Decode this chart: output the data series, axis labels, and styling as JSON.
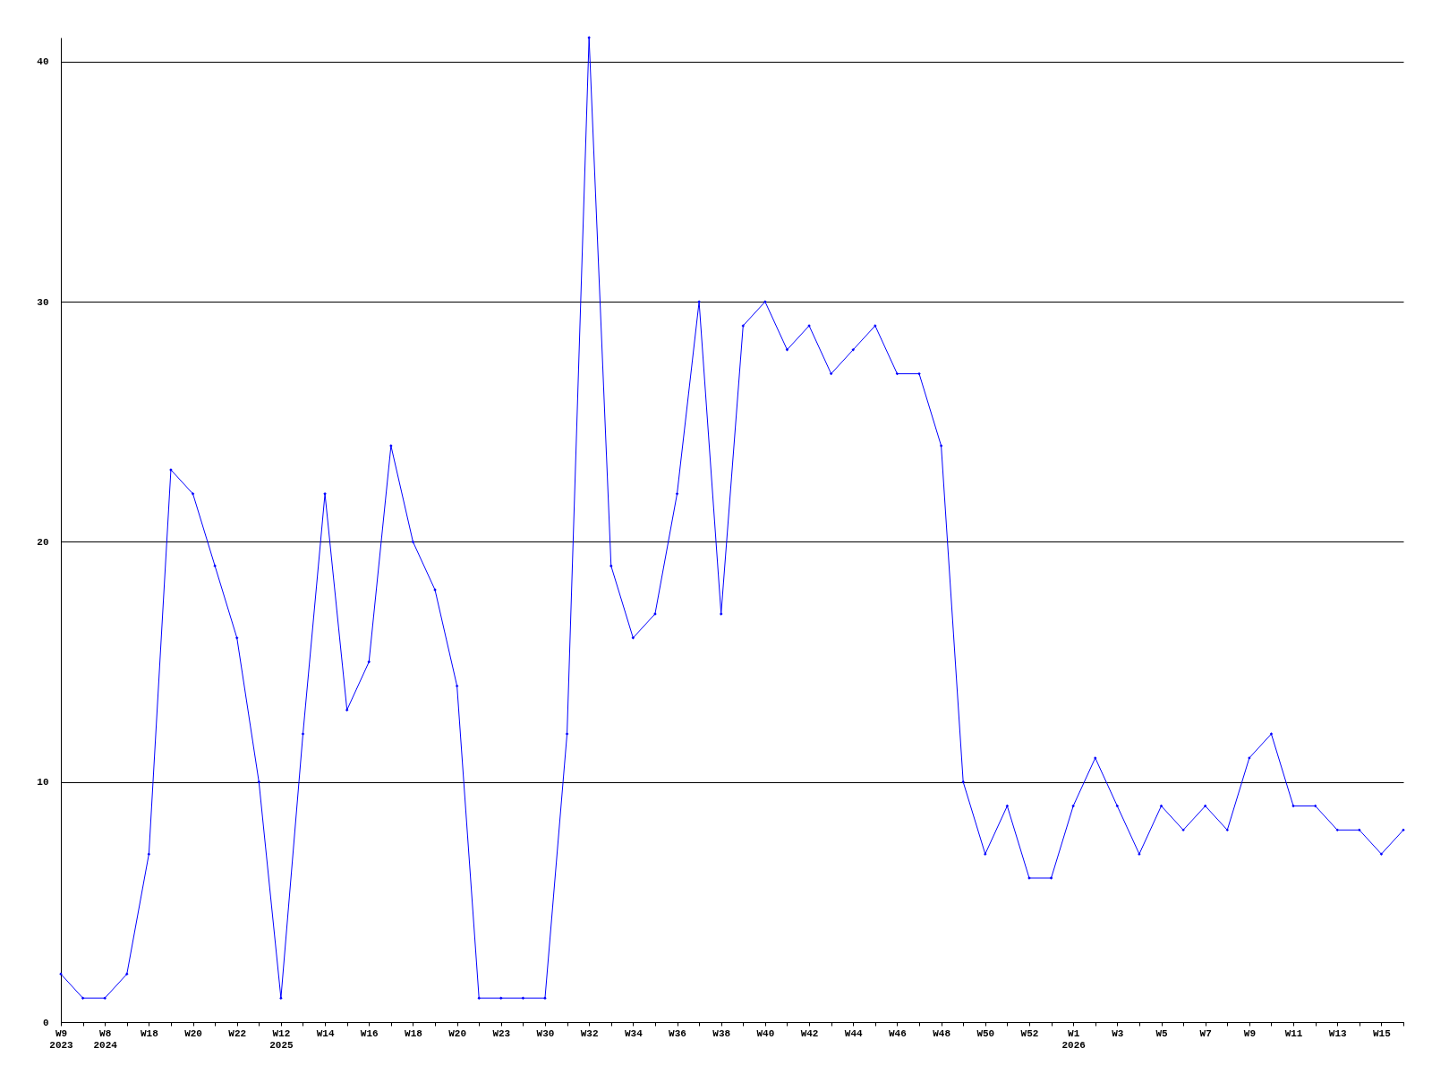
{
  "chart_data": {
    "type": "line",
    "categories": [
      "W9\n2023",
      null,
      "W8\n2024",
      null,
      "W18",
      null,
      "W20",
      null,
      "W22",
      null,
      "W12\n2025",
      null,
      "W14",
      null,
      "W16",
      null,
      "W18",
      null,
      "W20",
      null,
      "W23",
      null,
      "W30",
      null,
      "W32",
      null,
      "W34",
      null,
      "W36",
      null,
      "W38",
      null,
      "W40",
      null,
      "W42",
      null,
      "W44",
      null,
      "W46",
      null,
      "W48",
      null,
      "W50",
      null,
      "W52",
      null,
      "W1\n2026",
      null,
      "W3",
      null,
      "W5",
      null,
      "W7",
      null,
      "W9",
      null,
      "W11",
      null,
      "W13",
      null,
      "W15",
      null
    ],
    "series": [
      {
        "color": "#0000ff",
        "values": [
          2,
          1,
          1,
          2,
          7,
          23,
          22,
          19,
          16,
          10,
          1,
          12,
          22,
          13,
          15,
          24,
          20,
          18,
          14,
          1,
          1,
          1,
          1,
          12,
          41,
          19,
          16,
          17,
          22,
          30,
          17,
          29,
          30,
          28,
          29,
          27,
          28,
          29,
          27,
          27,
          24,
          10,
          7,
          9,
          6,
          6,
          9,
          11,
          9,
          7,
          9,
          8,
          9,
          8,
          11,
          12,
          9,
          9,
          8,
          8,
          7,
          8
        ]
      }
    ],
    "ylim": [
      0,
      41
    ],
    "yticks": [
      0,
      10,
      20,
      30,
      40
    ],
    "grid": "y",
    "legend": false,
    "marker": "diamond",
    "line_style": "solid"
  }
}
